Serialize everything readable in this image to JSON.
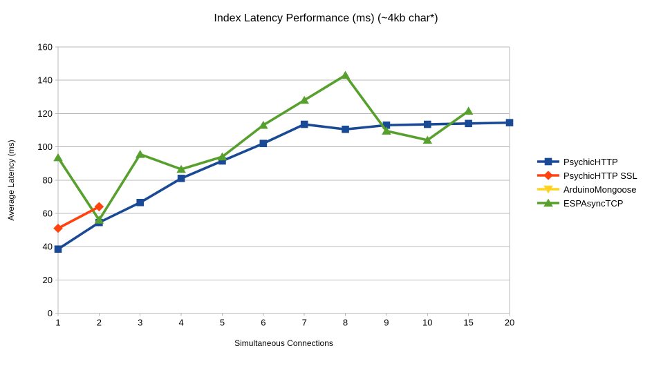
{
  "chart_data": {
    "type": "line",
    "title": "Index Latency Performance (ms) (~4kb char*)",
    "xlabel": "Simultaneous Connections",
    "ylabel": "Average Latency (ms)",
    "categories": [
      "1",
      "2",
      "3",
      "4",
      "5",
      "6",
      "7",
      "8",
      "9",
      "10",
      "15",
      "20"
    ],
    "ylim": [
      0,
      160
    ],
    "ytick_step": 20,
    "grid": "horizontal",
    "grid_color": "#b9b9b9",
    "axis_color": "#b9b9b9",
    "legend_position": "right",
    "series": [
      {
        "name": "PsychicHTTP",
        "color": "#1a4a96",
        "marker": "square",
        "values": [
          38.5,
          54.5,
          66.5,
          81,
          91.5,
          102,
          113.5,
          110.5,
          113,
          113.5,
          114,
          114.5
        ]
      },
      {
        "name": "PsychicHTTP SSL",
        "color": "#ff420e",
        "marker": "diamond",
        "values": [
          51,
          64,
          null,
          null,
          null,
          null,
          null,
          null,
          null,
          null,
          null,
          null
        ]
      },
      {
        "name": "ArduinoMongoose",
        "color": "#ffd320",
        "marker": "triangle-down",
        "values": [
          null,
          null,
          null,
          null,
          null,
          null,
          null,
          null,
          null,
          null,
          null,
          null
        ]
      },
      {
        "name": "ESPAsyncTCP",
        "color": "#57a02d",
        "marker": "triangle-up",
        "values": [
          93.5,
          56,
          95.5,
          86.5,
          94,
          113,
          128,
          143,
          109.5,
          104,
          121.5,
          null
        ]
      }
    ]
  }
}
